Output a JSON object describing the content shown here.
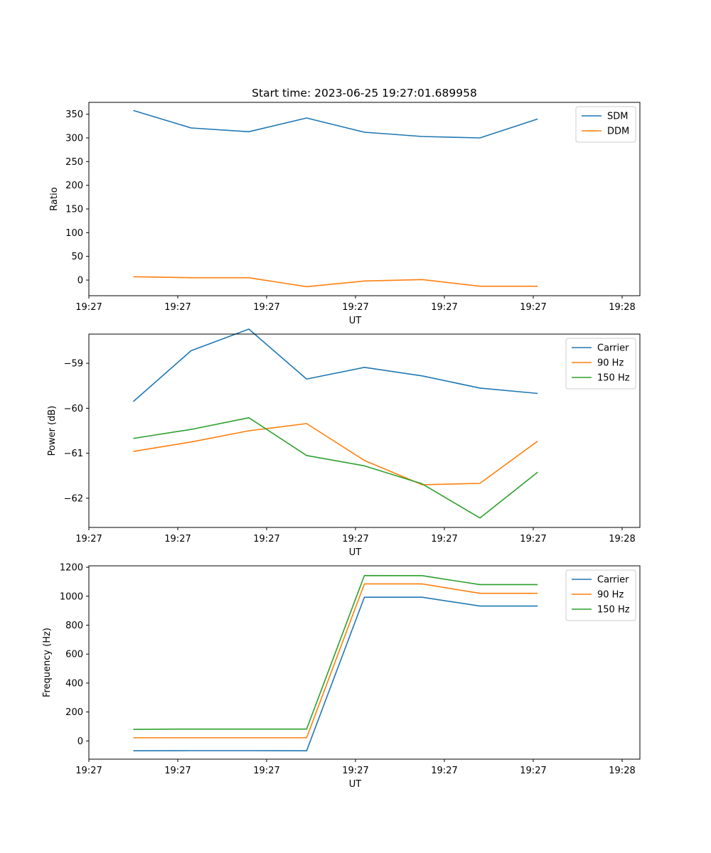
{
  "colors": {
    "blue": "#1f77b4",
    "orange": "#ff7f0e",
    "green": "#2ca02c"
  },
  "chart_data": [
    {
      "type": "line",
      "title": "Start time: 2023-06-25 19:27:01.689958",
      "xlabel": "UT",
      "ylabel": "Ratio",
      "xlim": [
        0,
        6.2
      ],
      "ylim": [
        -33,
        375
      ],
      "xticks": [
        "19:27",
        "19:27",
        "19:27",
        "19:27",
        "19:27",
        "19:27",
        "19:28"
      ],
      "yticks": [
        0,
        50,
        100,
        150,
        200,
        250,
        300,
        350
      ],
      "legend": "top-right",
      "x": [
        0.5,
        1.15,
        1.8,
        2.45,
        3.1,
        3.75,
        4.4,
        5.05
      ],
      "series": [
        {
          "name": "SDM",
          "color": "#1f77b4",
          "values": [
            358,
            321,
            313,
            342,
            312,
            303,
            300,
            340
          ]
        },
        {
          "name": "DDM",
          "color": "#ff7f0e",
          "values": [
            7,
            5,
            5,
            -14,
            -2,
            1,
            -13,
            -13
          ]
        }
      ]
    },
    {
      "type": "line",
      "title": "",
      "xlabel": "UT",
      "ylabel": "Power (dB)",
      "xlim": [
        0,
        6.2
      ],
      "ylim": [
        -62.65,
        -58.35
      ],
      "xticks": [
        "19:27",
        "19:27",
        "19:27",
        "19:27",
        "19:27",
        "19:27",
        "19:28"
      ],
      "yticks": [
        -59,
        -60,
        -61,
        -62
      ],
      "legend": "top-right",
      "x": [
        0.5,
        1.15,
        1.8,
        2.45,
        3.1,
        3.75,
        4.4,
        5.05
      ],
      "series": [
        {
          "name": "Carrier",
          "color": "#1f77b4",
          "values": [
            -59.85,
            -58.72,
            -58.24,
            -59.35,
            -59.09,
            -59.28,
            -59.55,
            -59.67
          ]
        },
        {
          "name": "90 Hz",
          "color": "#ff7f0e",
          "values": [
            -60.96,
            -60.75,
            -60.5,
            -60.34,
            -61.16,
            -61.7,
            -61.67,
            -60.73
          ]
        },
        {
          "name": "150 Hz",
          "color": "#2ca02c",
          "values": [
            -60.67,
            -60.47,
            -60.21,
            -61.05,
            -61.28,
            -61.68,
            -62.44,
            -61.42
          ]
        }
      ]
    },
    {
      "type": "line",
      "title": "",
      "xlabel": "UT",
      "ylabel": "Frequency (Hz)",
      "xlim": [
        0,
        6.2
      ],
      "ylim": [
        -126,
        1210
      ],
      "xticks": [
        "19:27",
        "19:27",
        "19:27",
        "19:27",
        "19:27",
        "19:27",
        "19:28"
      ],
      "yticks": [
        0,
        200,
        400,
        600,
        800,
        1000,
        1200
      ],
      "legend": "top-right",
      "x": [
        0.5,
        1.15,
        1.8,
        2.45,
        3.1,
        3.75,
        4.4,
        5.05
      ],
      "series": [
        {
          "name": "Carrier",
          "color": "#1f77b4",
          "values": [
            -68,
            -67,
            -67,
            -68,
            993,
            993,
            932,
            932
          ]
        },
        {
          "name": "90 Hz",
          "color": "#ff7f0e",
          "values": [
            22,
            22,
            22,
            22,
            1085,
            1085,
            1020,
            1020
          ]
        },
        {
          "name": "150 Hz",
          "color": "#2ca02c",
          "values": [
            80,
            82,
            82,
            82,
            1143,
            1142,
            1080,
            1080
          ]
        }
      ]
    }
  ]
}
